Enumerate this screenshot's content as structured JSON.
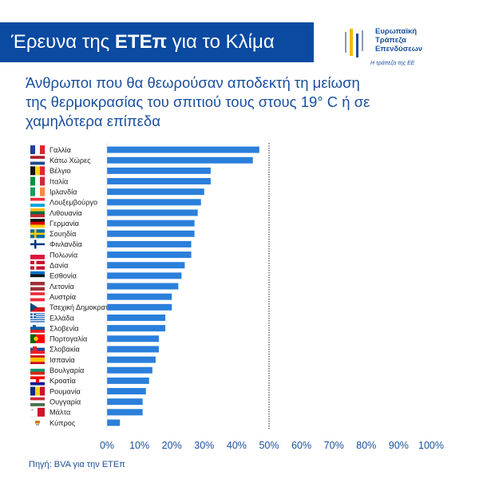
{
  "header": {
    "title_prefix": "Έρευνα της ",
    "title_bold": "ΕΤΕπ",
    "title_suffix": " για το Κλίμα",
    "subtitle": "Άνθρωποι που θα θεωρούσαν αποδεκτή τη μείωση της θερμοκρασίας του σπιτιού τους στους 19° C ή σε χαμηλότερα επίπεδα"
  },
  "logo": {
    "lines": [
      "Ευρωπαϊκή",
      "Τράπεζα",
      "Επενδύσεων"
    ],
    "tagline": "Η τράπεζα της ΕΕ",
    "mark_icon": "eib-logo-bars-icon"
  },
  "footer": {
    "source": "Πηγή: BVA για την ΕΤΕπ"
  },
  "chart_data": {
    "type": "bar",
    "orientation": "horizontal",
    "categories": [
      "Γαλλία",
      "Κάτω Χώρες",
      "Βέλγιο",
      "Ιταλία",
      "Ιρλανδία",
      "Λουξεμβούργο",
      "Λιθουανία",
      "Γερμανία",
      "Σουηδία",
      "Φινλανδία",
      "Πολωνία",
      "Δανία",
      "Εσθονία",
      "Λετονία",
      "Αυστρία",
      "Τσεχική Δημοκρατία",
      "Ελλάδα",
      "Σλοβενία",
      "Πορτογαλία",
      "Σλοβακία",
      "Ισπανία",
      "Βουλγαρία",
      "Κροατία",
      "Ρουμανία",
      "Ουγγαρία",
      "Μάλτα",
      "Κύπρος"
    ],
    "values": [
      47,
      45,
      32,
      32,
      30,
      29,
      28,
      27,
      27,
      26,
      26,
      24,
      23,
      22,
      20,
      20,
      18,
      18,
      16,
      16,
      15,
      14,
      13,
      12,
      11,
      11,
      4
    ],
    "xlim": [
      0,
      100
    ],
    "x_ticks": [
      "0%",
      "10%",
      "20%",
      "30%",
      "40%",
      "50%",
      "60%",
      "70%",
      "80%",
      "90%",
      "100%"
    ],
    "reference_line": 50,
    "bar_color": "#2a7fdb",
    "grid": false,
    "flag_icons": [
      "flag-france-icon",
      "flag-netherlands-icon",
      "flag-belgium-icon",
      "flag-italy-icon",
      "flag-ireland-icon",
      "flag-luxembourg-icon",
      "flag-lithuania-icon",
      "flag-germany-icon",
      "flag-sweden-icon",
      "flag-finland-icon",
      "flag-poland-icon",
      "flag-denmark-icon",
      "flag-estonia-icon",
      "flag-latvia-icon",
      "flag-austria-icon",
      "flag-czechia-icon",
      "flag-greece-icon",
      "flag-slovenia-icon",
      "flag-portugal-icon",
      "flag-slovakia-icon",
      "flag-spain-icon",
      "flag-bulgaria-icon",
      "flag-croatia-icon",
      "flag-romania-icon",
      "flag-hungary-icon",
      "flag-malta-icon",
      "flag-cyprus-icon"
    ]
  },
  "colors": {
    "brand_blue": "#0a4aa1",
    "text_blue": "#1a4f9c",
    "bar": "#2a7fdb"
  }
}
